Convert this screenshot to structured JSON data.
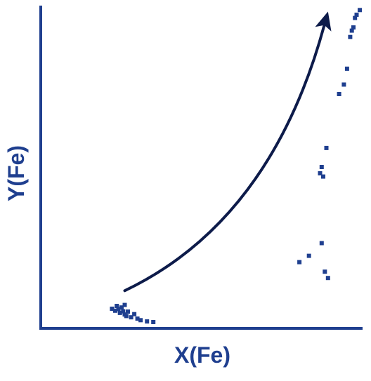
{
  "chart_data": {
    "type": "scatter",
    "xlabel": "X(Fe)",
    "ylabel": "Y(Fe)",
    "xlim": [
      0,
      1
    ],
    "ylim": [
      0,
      1
    ],
    "grid": false,
    "ticks": false,
    "series": [
      {
        "color": "#1f3f8f",
        "points": [
          {
            "x": 0.22,
            "y": 0.053
          },
          {
            "x": 0.23,
            "y": 0.047
          },
          {
            "x": 0.24,
            "y": 0.052
          },
          {
            "x": 0.245,
            "y": 0.04
          },
          {
            "x": 0.25,
            "y": 0.057
          },
          {
            "x": 0.255,
            "y": 0.045
          },
          {
            "x": 0.26,
            "y": 0.035
          },
          {
            "x": 0.265,
            "y": 0.03
          },
          {
            "x": 0.27,
            "y": 0.044
          },
          {
            "x": 0.28,
            "y": 0.026
          },
          {
            "x": 0.29,
            "y": 0.036
          },
          {
            "x": 0.3,
            "y": 0.022
          },
          {
            "x": 0.31,
            "y": 0.017
          },
          {
            "x": 0.33,
            "y": 0.013
          },
          {
            "x": 0.35,
            "y": 0.011
          },
          {
            "x": 0.235,
            "y": 0.062
          },
          {
            "x": 0.26,
            "y": 0.065
          },
          {
            "x": 0.81,
            "y": 0.2
          },
          {
            "x": 0.84,
            "y": 0.22
          },
          {
            "x": 0.88,
            "y": 0.26
          },
          {
            "x": 0.89,
            "y": 0.17
          },
          {
            "x": 0.9,
            "y": 0.15
          },
          {
            "x": 0.875,
            "y": 0.48
          },
          {
            "x": 0.88,
            "y": 0.5
          },
          {
            "x": 0.885,
            "y": 0.47
          },
          {
            "x": 0.895,
            "y": 0.56
          },
          {
            "x": 0.935,
            "y": 0.73
          },
          {
            "x": 0.95,
            "y": 0.76
          },
          {
            "x": 0.96,
            "y": 0.81
          },
          {
            "x": 0.97,
            "y": 0.91
          },
          {
            "x": 0.975,
            "y": 0.93
          },
          {
            "x": 0.98,
            "y": 0.94
          },
          {
            "x": 0.985,
            "y": 0.97
          },
          {
            "x": 0.99,
            "y": 0.98
          },
          {
            "x": 1.0,
            "y": 0.995
          }
        ]
      }
    ],
    "arrow": {
      "from": {
        "x": 0.26,
        "y": 0.11
      },
      "control": {
        "x": 0.72,
        "y": 0.33
      },
      "to": {
        "x": 0.9,
        "y": 0.99
      }
    }
  }
}
